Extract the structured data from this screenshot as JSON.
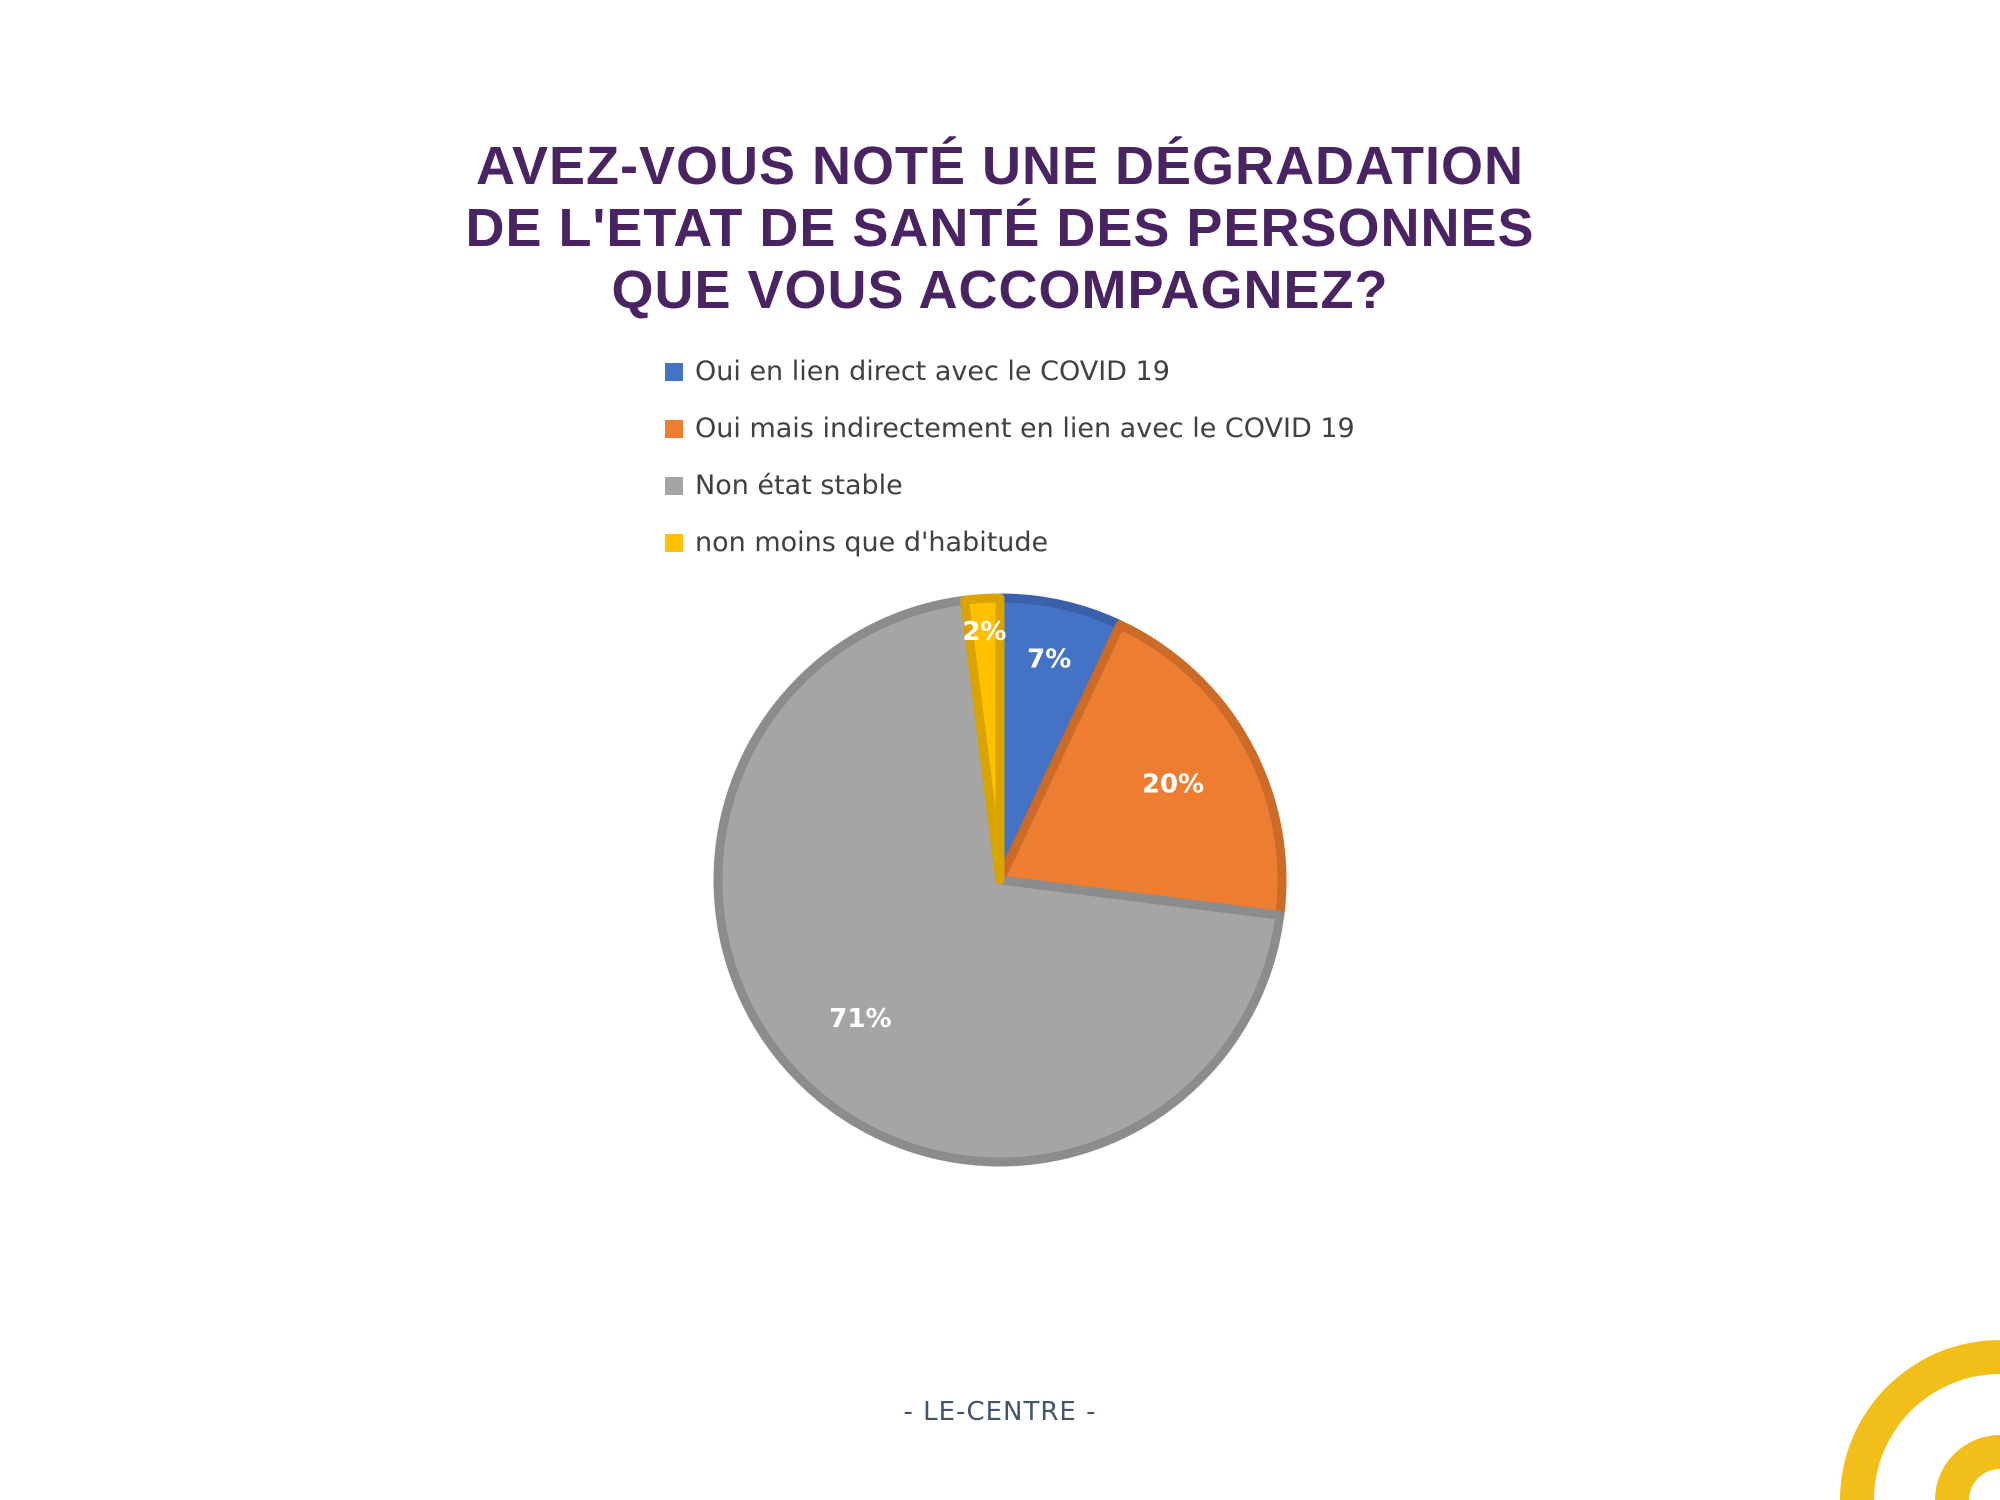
{
  "chart_data": {
    "type": "pie",
    "title": "AVEZ-VOUS NOTÉ UNE DÉGRADATION DE L'ETAT DE SANTÉ DES PERSONNES QUE VOUS ACCOMPAGNEZ?",
    "title_lines": [
      "AVEZ-VOUS NOTÉ UNE DÉGRADATION",
      "DE L'ETAT DE SANTÉ DES PERSONNES",
      "QUE VOUS ACCOMPAGNEZ?"
    ],
    "legend_position": "top",
    "slices": [
      {
        "label": "Oui en lien direct avec le COVID 19",
        "value": 7,
        "display": "7%",
        "color": "#4472c4",
        "border": "#3a62ab"
      },
      {
        "label": "Oui mais indirectement en lien avec le COVID 19",
        "value": 20,
        "display": "20%",
        "color": "#ed7d31",
        "border": "#cc6a28"
      },
      {
        "label": "Non état stable",
        "value": 71,
        "display": "71%",
        "color": "#a5a5a5",
        "border": "#8c8c8c"
      },
      {
        "label": "non moins que d'habitude",
        "value": 2,
        "display": "2%",
        "color": "#ffc000",
        "border": "#d9a400"
      }
    ]
  },
  "footer": {
    "text": "- LE-CENTRE -"
  },
  "brand": {
    "accent_color": "#f2be1a"
  }
}
